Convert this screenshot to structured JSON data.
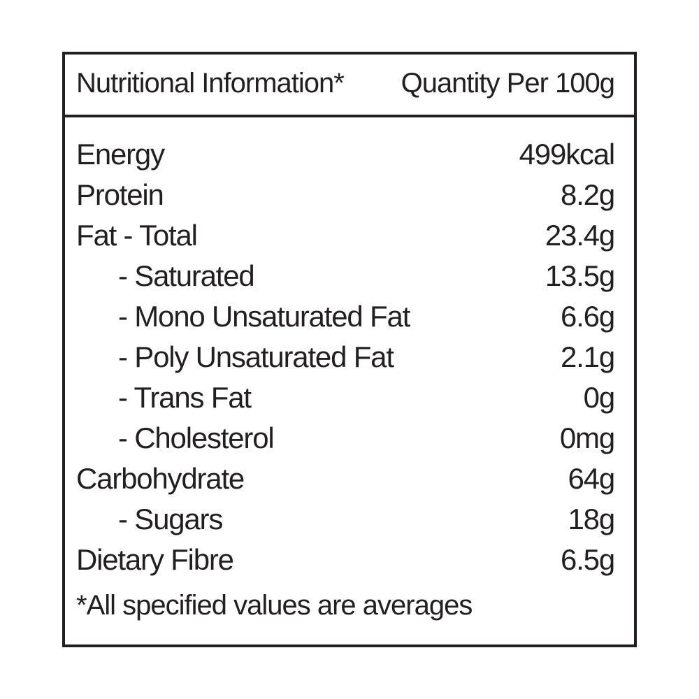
{
  "header": {
    "title": "Nutritional Information*",
    "quantity_label": "Quantity Per 100g"
  },
  "rows": [
    {
      "label": "Energy",
      "value": "499kcal",
      "indent": false
    },
    {
      "label": "Protein",
      "value": "8.2g",
      "indent": false
    },
    {
      "label": "Fat - Total",
      "value": "23.4g",
      "indent": false
    },
    {
      "label": "- Saturated",
      "value": "13.5g",
      "indent": true
    },
    {
      "label": "- Mono Unsaturated Fat",
      "value": "6.6g",
      "indent": true
    },
    {
      "label": "- Poly Unsaturated Fat",
      "value": "2.1g",
      "indent": true
    },
    {
      "label": "- Trans Fat",
      "value": "0g",
      "indent": true
    },
    {
      "label": "- Cholesterol",
      "value": "0mg",
      "indent": true
    },
    {
      "label": "Carbohydrate",
      "value": "64g",
      "indent": false
    },
    {
      "label": "- Sugars",
      "value": "18g",
      "indent": true
    },
    {
      "label": "Dietary Fibre",
      "value": "6.5g",
      "indent": false
    }
  ],
  "footnote": "*All specified values are averages",
  "colors": {
    "text": "#231f20",
    "border": "#231f20",
    "background": "#ffffff"
  }
}
